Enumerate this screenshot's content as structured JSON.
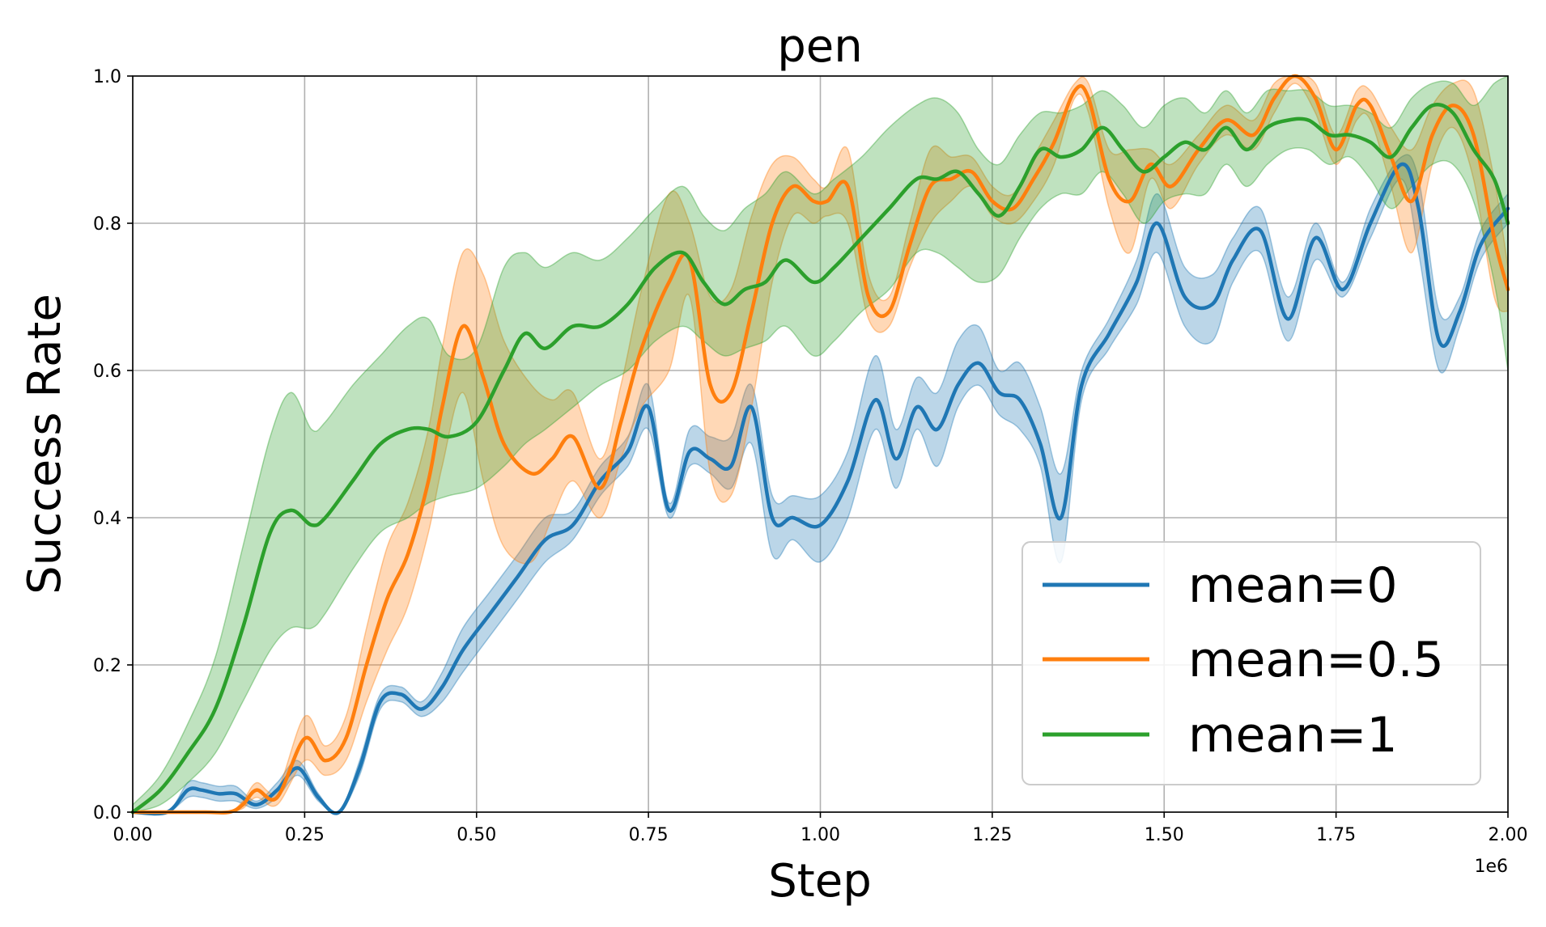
{
  "chart_data": {
    "type": "line",
    "title": "pen",
    "xlabel": "Step",
    "ylabel": "Success Rate",
    "x_offset_label": "1e6",
    "xlim": [
      0,
      2.0
    ],
    "ylim": [
      0,
      1.0
    ],
    "xticks": [
      "0.00",
      "0.25",
      "0.50",
      "0.75",
      "1.00",
      "1.25",
      "1.50",
      "1.75",
      "2.00"
    ],
    "yticks": [
      "0.0",
      "0.2",
      "0.4",
      "0.6",
      "0.8",
      "1.0"
    ],
    "grid": true,
    "legend_position": "lower-right",
    "series": [
      {
        "name": "mean=0",
        "color": "#1f77b4",
        "x": [
          0.0,
          0.05,
          0.08,
          0.1,
          0.125,
          0.15,
          0.18,
          0.21,
          0.24,
          0.27,
          0.3,
          0.33,
          0.36,
          0.39,
          0.42,
          0.45,
          0.48,
          0.52,
          0.56,
          0.6,
          0.64,
          0.68,
          0.72,
          0.75,
          0.78,
          0.81,
          0.84,
          0.87,
          0.9,
          0.93,
          0.96,
          1.0,
          1.04,
          1.08,
          1.11,
          1.14,
          1.17,
          1.2,
          1.23,
          1.26,
          1.29,
          1.32,
          1.35,
          1.38,
          1.42,
          1.46,
          1.49,
          1.53,
          1.57,
          1.6,
          1.64,
          1.68,
          1.72,
          1.76,
          1.8,
          1.845,
          1.87,
          1.9,
          1.93,
          1.96,
          2.0
        ],
        "y": [
          0.0,
          0.0,
          0.03,
          0.03,
          0.025,
          0.025,
          0.01,
          0.03,
          0.06,
          0.02,
          0.0,
          0.06,
          0.15,
          0.16,
          0.14,
          0.17,
          0.22,
          0.27,
          0.32,
          0.37,
          0.39,
          0.45,
          0.49,
          0.55,
          0.41,
          0.49,
          0.48,
          0.47,
          0.55,
          0.4,
          0.4,
          0.39,
          0.45,
          0.56,
          0.48,
          0.55,
          0.52,
          0.58,
          0.61,
          0.57,
          0.56,
          0.5,
          0.4,
          0.58,
          0.65,
          0.72,
          0.8,
          0.7,
          0.69,
          0.75,
          0.79,
          0.67,
          0.78,
          0.71,
          0.8,
          0.88,
          0.82,
          0.64,
          0.68,
          0.77,
          0.82
        ],
        "lower": [
          0.0,
          0.0,
          0.02,
          0.02,
          0.015,
          0.015,
          0.005,
          0.02,
          0.05,
          0.015,
          0.0,
          0.05,
          0.14,
          0.15,
          0.13,
          0.15,
          0.19,
          0.24,
          0.29,
          0.34,
          0.37,
          0.43,
          0.47,
          0.52,
          0.4,
          0.47,
          0.46,
          0.44,
          0.5,
          0.35,
          0.37,
          0.34,
          0.4,
          0.52,
          0.44,
          0.52,
          0.47,
          0.55,
          0.58,
          0.54,
          0.52,
          0.47,
          0.34,
          0.56,
          0.63,
          0.69,
          0.76,
          0.66,
          0.64,
          0.72,
          0.76,
          0.64,
          0.75,
          0.7,
          0.78,
          0.86,
          0.76,
          0.6,
          0.66,
          0.75,
          0.8
        ],
        "upper": [
          0.0,
          0.0,
          0.04,
          0.04,
          0.035,
          0.035,
          0.015,
          0.04,
          0.07,
          0.025,
          0.0,
          0.07,
          0.16,
          0.17,
          0.15,
          0.19,
          0.25,
          0.3,
          0.35,
          0.4,
          0.41,
          0.47,
          0.51,
          0.58,
          0.42,
          0.52,
          0.51,
          0.51,
          0.58,
          0.43,
          0.43,
          0.43,
          0.49,
          0.62,
          0.52,
          0.59,
          0.57,
          0.64,
          0.66,
          0.6,
          0.61,
          0.55,
          0.46,
          0.6,
          0.67,
          0.75,
          0.84,
          0.74,
          0.73,
          0.78,
          0.82,
          0.7,
          0.8,
          0.72,
          0.82,
          0.89,
          0.86,
          0.68,
          0.7,
          0.79,
          0.84
        ]
      },
      {
        "name": "mean=0.5",
        "color": "#ff7f0e",
        "x": [
          0.0,
          0.1,
          0.14,
          0.16,
          0.18,
          0.21,
          0.25,
          0.28,
          0.31,
          0.34,
          0.37,
          0.4,
          0.43,
          0.45,
          0.48,
          0.51,
          0.54,
          0.58,
          0.61,
          0.64,
          0.68,
          0.71,
          0.74,
          0.78,
          0.81,
          0.84,
          0.87,
          0.9,
          0.93,
          0.96,
          0.99,
          1.01,
          1.04,
          1.07,
          1.1,
          1.13,
          1.16,
          1.19,
          1.22,
          1.25,
          1.28,
          1.31,
          1.34,
          1.37,
          1.39,
          1.42,
          1.45,
          1.48,
          1.51,
          1.55,
          1.59,
          1.63,
          1.66,
          1.69,
          1.72,
          1.75,
          1.78,
          1.8,
          1.83,
          1.86,
          1.89,
          1.92,
          1.95,
          1.98,
          2.0
        ],
        "y": [
          0.0,
          0.0,
          0.0,
          0.01,
          0.03,
          0.02,
          0.1,
          0.07,
          0.1,
          0.2,
          0.29,
          0.35,
          0.45,
          0.55,
          0.66,
          0.59,
          0.5,
          0.46,
          0.48,
          0.51,
          0.44,
          0.53,
          0.63,
          0.72,
          0.75,
          0.58,
          0.57,
          0.68,
          0.8,
          0.85,
          0.83,
          0.83,
          0.85,
          0.7,
          0.68,
          0.77,
          0.85,
          0.86,
          0.87,
          0.83,
          0.82,
          0.86,
          0.91,
          0.98,
          0.97,
          0.86,
          0.83,
          0.88,
          0.85,
          0.9,
          0.94,
          0.92,
          0.97,
          1.0,
          0.97,
          0.9,
          0.96,
          0.96,
          0.89,
          0.83,
          0.92,
          0.96,
          0.92,
          0.78,
          0.71
        ],
        "lower": [
          0.0,
          0.0,
          0.0,
          0.005,
          0.02,
          0.01,
          0.07,
          0.05,
          0.07,
          0.15,
          0.22,
          0.28,
          0.38,
          0.47,
          0.57,
          0.45,
          0.36,
          0.34,
          0.4,
          0.45,
          0.4,
          0.48,
          0.55,
          0.6,
          0.7,
          0.46,
          0.43,
          0.55,
          0.72,
          0.81,
          0.8,
          0.81,
          0.8,
          0.67,
          0.66,
          0.74,
          0.8,
          0.83,
          0.85,
          0.81,
          0.8,
          0.83,
          0.88,
          0.97,
          0.95,
          0.82,
          0.76,
          0.86,
          0.82,
          0.88,
          0.92,
          0.9,
          0.95,
          0.99,
          0.95,
          0.88,
          0.94,
          0.94,
          0.85,
          0.76,
          0.88,
          0.93,
          0.86,
          0.7,
          0.68
        ],
        "upper": [
          0.0,
          0.0,
          0.0,
          0.015,
          0.04,
          0.03,
          0.13,
          0.09,
          0.13,
          0.25,
          0.36,
          0.42,
          0.52,
          0.63,
          0.76,
          0.73,
          0.64,
          0.58,
          0.56,
          0.57,
          0.48,
          0.58,
          0.71,
          0.84,
          0.8,
          0.7,
          0.71,
          0.81,
          0.88,
          0.89,
          0.86,
          0.85,
          0.9,
          0.73,
          0.7,
          0.8,
          0.9,
          0.89,
          0.89,
          0.85,
          0.84,
          0.89,
          0.94,
          0.99,
          0.99,
          0.9,
          0.9,
          0.9,
          0.88,
          0.92,
          0.96,
          0.94,
          0.99,
          1.0,
          0.99,
          0.92,
          0.98,
          0.98,
          0.93,
          0.9,
          0.96,
          0.99,
          0.98,
          0.86,
          0.74
        ]
      },
      {
        "name": "mean=1",
        "color": "#2ca02c",
        "x": [
          0.0,
          0.04,
          0.08,
          0.12,
          0.16,
          0.2,
          0.23,
          0.26,
          0.28,
          0.32,
          0.36,
          0.4,
          0.43,
          0.46,
          0.5,
          0.54,
          0.57,
          0.6,
          0.64,
          0.68,
          0.72,
          0.76,
          0.8,
          0.83,
          0.86,
          0.89,
          0.92,
          0.95,
          0.99,
          1.02,
          1.06,
          1.1,
          1.14,
          1.17,
          1.2,
          1.23,
          1.26,
          1.29,
          1.32,
          1.35,
          1.38,
          1.41,
          1.44,
          1.47,
          1.5,
          1.53,
          1.56,
          1.59,
          1.62,
          1.65,
          1.68,
          1.71,
          1.74,
          1.77,
          1.8,
          1.83,
          1.86,
          1.89,
          1.92,
          1.95,
          1.98,
          2.0
        ],
        "y": [
          0.0,
          0.03,
          0.08,
          0.14,
          0.25,
          0.38,
          0.41,
          0.39,
          0.4,
          0.45,
          0.5,
          0.52,
          0.52,
          0.51,
          0.53,
          0.6,
          0.65,
          0.63,
          0.66,
          0.66,
          0.69,
          0.74,
          0.76,
          0.72,
          0.69,
          0.71,
          0.72,
          0.75,
          0.72,
          0.74,
          0.78,
          0.82,
          0.86,
          0.86,
          0.87,
          0.84,
          0.81,
          0.85,
          0.9,
          0.89,
          0.9,
          0.93,
          0.9,
          0.87,
          0.89,
          0.91,
          0.9,
          0.93,
          0.9,
          0.93,
          0.94,
          0.94,
          0.92,
          0.92,
          0.91,
          0.89,
          0.93,
          0.96,
          0.95,
          0.9,
          0.86,
          0.8
        ],
        "lower": [
          0.0,
          0.01,
          0.04,
          0.08,
          0.15,
          0.22,
          0.25,
          0.25,
          0.27,
          0.33,
          0.38,
          0.4,
          0.42,
          0.43,
          0.44,
          0.47,
          0.5,
          0.52,
          0.55,
          0.58,
          0.6,
          0.64,
          0.66,
          0.64,
          0.62,
          0.63,
          0.64,
          0.66,
          0.62,
          0.64,
          0.68,
          0.71,
          0.76,
          0.76,
          0.74,
          0.72,
          0.73,
          0.78,
          0.82,
          0.84,
          0.84,
          0.87,
          0.84,
          0.8,
          0.83,
          0.84,
          0.84,
          0.88,
          0.85,
          0.88,
          0.9,
          0.9,
          0.88,
          0.89,
          0.86,
          0.82,
          0.85,
          0.88,
          0.88,
          0.83,
          0.72,
          0.6
        ],
        "upper": [
          0.01,
          0.05,
          0.12,
          0.21,
          0.36,
          0.51,
          0.57,
          0.52,
          0.53,
          0.58,
          0.62,
          0.66,
          0.67,
          0.62,
          0.63,
          0.74,
          0.76,
          0.74,
          0.76,
          0.75,
          0.78,
          0.82,
          0.85,
          0.81,
          0.79,
          0.82,
          0.84,
          0.87,
          0.84,
          0.86,
          0.89,
          0.93,
          0.96,
          0.97,
          0.95,
          0.9,
          0.88,
          0.92,
          0.95,
          0.95,
          0.96,
          0.98,
          0.96,
          0.93,
          0.96,
          0.97,
          0.95,
          0.98,
          0.95,
          0.98,
          0.98,
          0.98,
          0.96,
          0.96,
          0.95,
          0.93,
          0.97,
          0.99,
          0.99,
          0.96,
          0.99,
          1.0
        ]
      }
    ]
  }
}
